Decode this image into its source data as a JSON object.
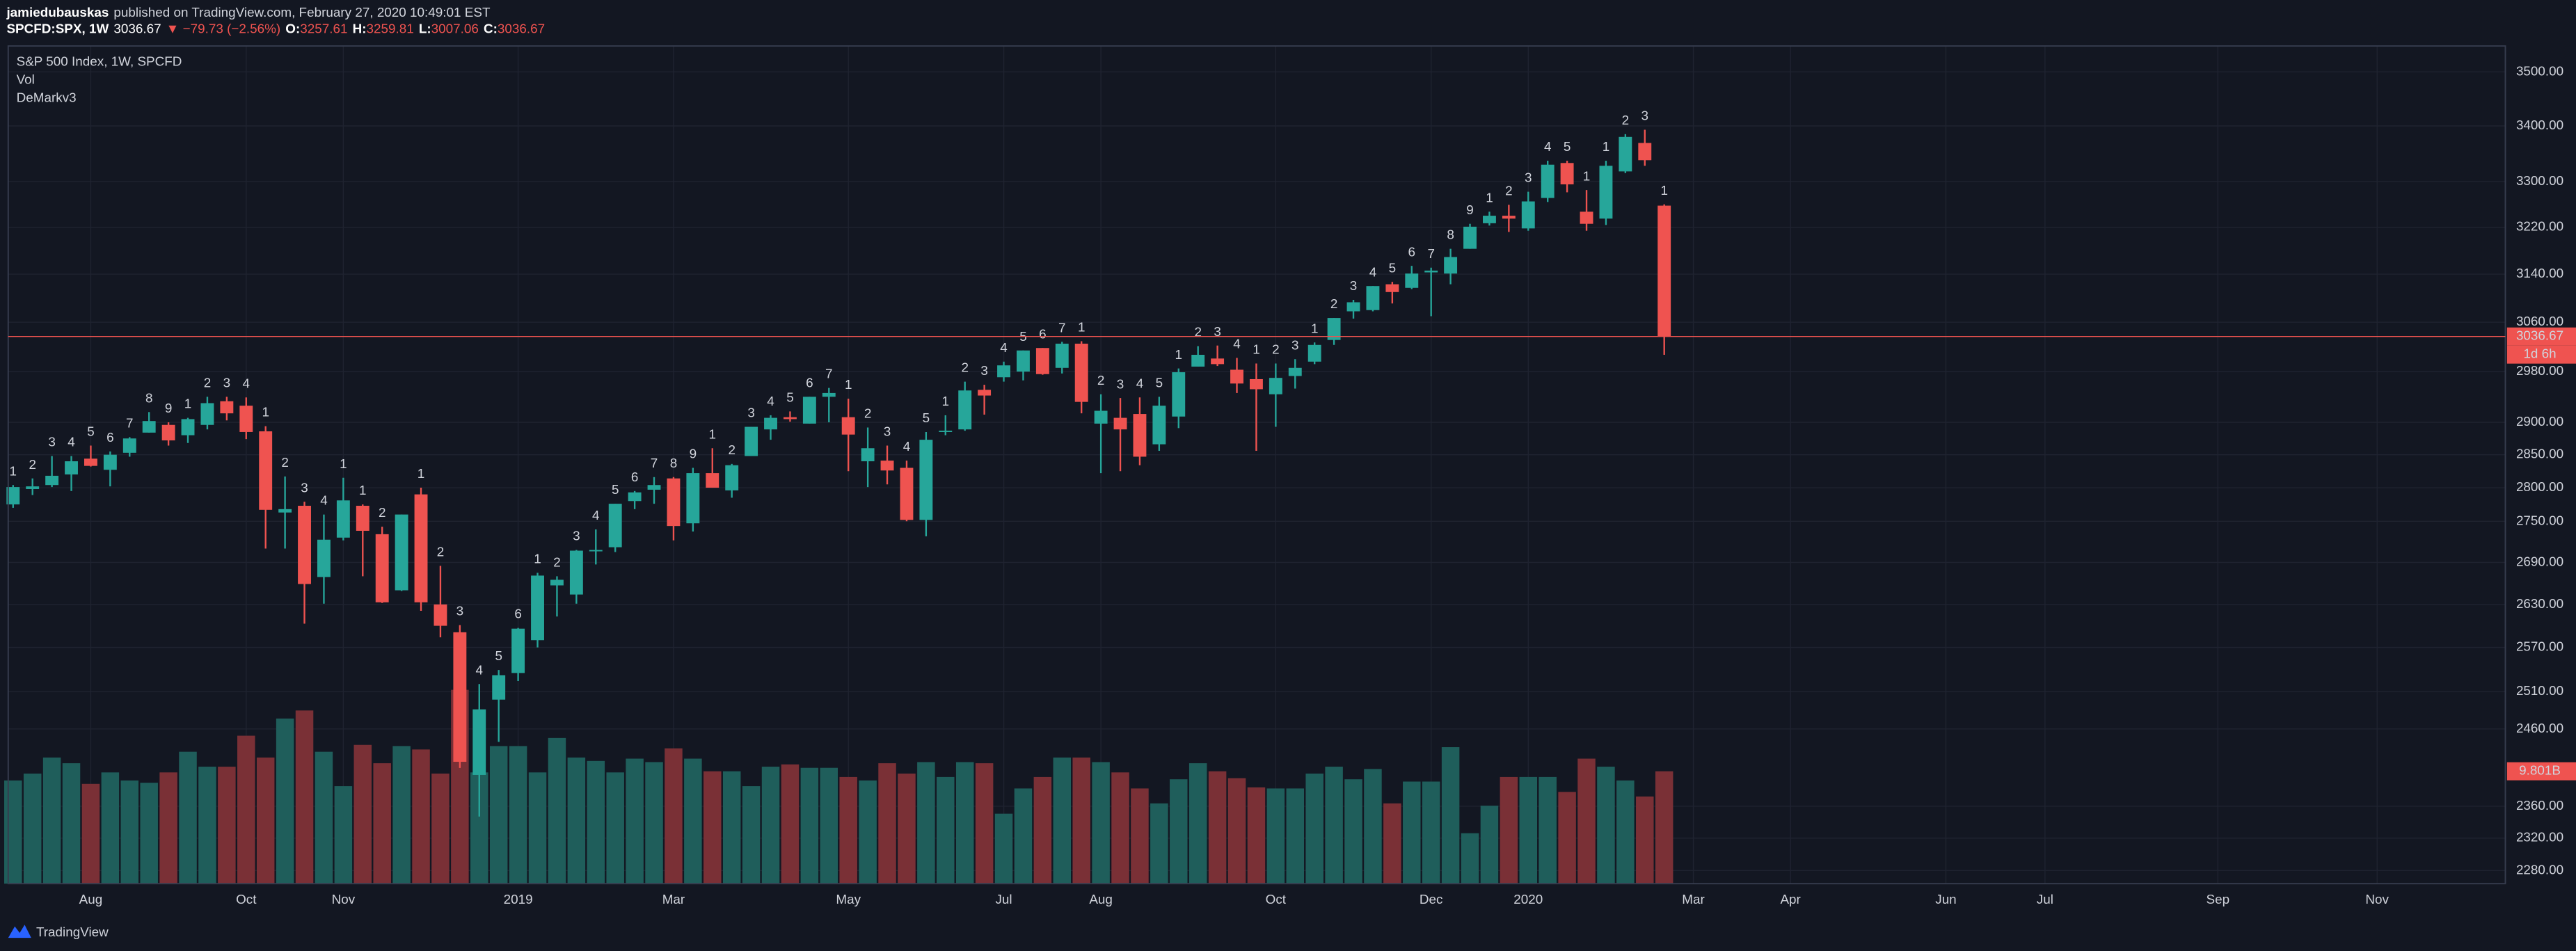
{
  "header": {
    "author": "jamiedubauskas",
    "published": "published on TradingView.com, February 27, 2020 10:49:01 EST",
    "symbol": "SPCFD:SPX, 1W",
    "change": "▼ −79.73 (−2.56%)",
    "open_label": "O:",
    "high_label": "H:",
    "low_label": "L:",
    "close_label": "C:"
  },
  "footer": {
    "brand": "TradingView"
  },
  "chart_data": {
    "type": "candlestick",
    "title": "S&P 500 Index, 1W, SPCFD",
    "indicators": [
      "Vol",
      "DeMarkv3"
    ],
    "open": [
      2775,
      2798,
      2804,
      2820,
      2844,
      2827,
      2853,
      2884,
      2896,
      2880,
      2896,
      2933,
      2926,
      2886,
      2763,
      2773,
      2669,
      2726,
      2773,
      2731,
      2650,
      2790,
      2630,
      2591,
      2400,
      2499,
      2535,
      2580,
      2657,
      2644,
      2706,
      2712,
      2780,
      2797,
      2814,
      2747,
      2822,
      2796,
      2848,
      2889,
      2908,
      2898,
      2940,
      2908,
      2840,
      2841,
      2830,
      2752,
      2885,
      2889,
      2951,
      2971,
      2980,
      3018,
      2986,
      3025,
      2898,
      2907,
      2913,
      2866,
      2909,
      2988,
      3001,
      2983,
      2968,
      2944,
      2973,
      2996,
      3031,
      3078,
      3080,
      3123,
      3117,
      3143,
      3141,
      3183,
      3227,
      3240,
      3218,
      3271,
      3333,
      3247,
      3235,
      3318,
      3369,
      3257.61
    ],
    "high": [
      2804,
      2814,
      2848,
      2848,
      2864,
      2855,
      2877,
      2916,
      2900,
      2907,
      2940,
      2940,
      2939,
      2894,
      2817,
      2779,
      2760,
      2815,
      2775,
      2742,
      2760,
      2800,
      2685,
      2601,
      2520,
      2539,
      2597,
      2675,
      2670,
      2708,
      2738,
      2776,
      2795,
      2816,
      2816,
      2830,
      2860,
      2836,
      2893,
      2911,
      2917,
      2940,
      2954,
      2937,
      2892,
      2864,
      2841,
      2885,
      2911,
      2964,
      2959,
      2996,
      3014,
      3018,
      3028,
      3029,
      2944,
      2938,
      2939,
      2940,
      2985,
      3021,
      3022,
      3002,
      2993,
      2993,
      3000,
      3027,
      3067,
      3097,
      3120,
      3127,
      3154,
      3151,
      3183,
      3226,
      3247,
      3259,
      3282,
      3337,
      3337,
      3285,
      3337,
      3385,
      3393,
      3259.81
    ],
    "low": [
      2770,
      2789,
      2801,
      2795,
      2832,
      2802,
      2847,
      2884,
      2864,
      2868,
      2889,
      2903,
      2874,
      2710,
      2710,
      2603,
      2631,
      2722,
      2670,
      2632,
      2649,
      2621,
      2584,
      2409,
      2347,
      2443,
      2524,
      2570,
      2613,
      2631,
      2687,
      2705,
      2768,
      2776,
      2722,
      2735,
      2800,
      2785,
      2848,
      2873,
      2901,
      2898,
      2900,
      2825,
      2801,
      2805,
      2750,
      2728,
      2880,
      2887,
      2912,
      2964,
      2966,
      2975,
      2977,
      2914,
      2822,
      2825,
      2834,
      2856,
      2891,
      2988,
      2989,
      2946,
      2856,
      2893,
      2953,
      2992,
      3023,
      3066,
      3078,
      3091,
      3115,
      3070,
      3123,
      3183,
      3223,
      3212,
      3214,
      3264,
      3281,
      3214,
      3224,
      3315,
      3328,
      3007.06
    ],
    "close": [
      2801,
      2802,
      2818,
      2840,
      2833,
      2850,
      2875,
      2902,
      2872,
      2905,
      2930,
      2914,
      2885,
      2767,
      2768,
      2659,
      2723,
      2781,
      2736,
      2633,
      2760,
      2633,
      2600,
      2417,
      2486,
      2532,
      2596,
      2671,
      2665,
      2707,
      2708,
      2776,
      2793,
      2804,
      2743,
      2822,
      2800,
      2834,
      2893,
      2907,
      2905,
      2940,
      2946,
      2881,
      2860,
      2826,
      2752,
      2873,
      2887,
      2950,
      2942,
      2990,
      3014,
      2976,
      3025,
      2932,
      2918,
      2889,
      2847,
      2926,
      2979,
      3007,
      2992,
      2961,
      2952,
      2970,
      2986,
      3023,
      3067,
      3093,
      3120,
      3110,
      3141,
      3146,
      3169,
      3221,
      3240,
      3235,
      3265,
      3330,
      3295,
      3226,
      3328,
      3380,
      3338,
      3036.67
    ],
    "volume": [
      9.0,
      9.6,
      11.0,
      10.5,
      8.7,
      9.7,
      9.0,
      8.8,
      9.7,
      11.5,
      10.2,
      10.2,
      12.9,
      11.0,
      14.4,
      15.1,
      11.5,
      8.5,
      12.1,
      10.5,
      12.0,
      11.7,
      9.6,
      16.9,
      9.7,
      12.0,
      12.0,
      9.7,
      12.7,
      11.0,
      10.7,
      9.7,
      10.9,
      10.6,
      11.8,
      10.9,
      9.8,
      9.8,
      8.5,
      10.2,
      10.4,
      10.1,
      10.1,
      9.3,
      9.0,
      10.5,
      9.6,
      10.6,
      9.3,
      10.6,
      10.5,
      6.1,
      8.3,
      9.3,
      11.0,
      11.0,
      10.6,
      9.7,
      8.3,
      7.0,
      9.1,
      10.5,
      9.8,
      9.2,
      8.4,
      8.3,
      8.3,
      9.6,
      10.2,
      9.1,
      10.0,
      7.0,
      8.9,
      8.9,
      11.9,
      4.4,
      6.8,
      9.3,
      9.3,
      9.3,
      8.0,
      10.9,
      10.2,
      9.0,
      7.6,
      9.801
    ],
    "last_volume_label": "9.801B",
    "countdown": "1d 6h",
    "sell_setup": [
      1,
      2,
      3,
      4,
      5,
      6,
      7,
      8,
      9,
      1,
      2,
      3,
      4,
      null,
      null,
      null,
      null,
      1,
      null,
      null,
      null,
      null,
      null,
      null,
      null,
      null,
      null,
      1,
      2,
      3,
      4,
      5,
      6,
      7,
      8,
      9,
      1,
      2,
      3,
      4,
      5,
      6,
      7,
      null,
      null,
      null,
      null,
      null,
      1,
      2,
      3,
      4,
      5,
      6,
      7,
      null,
      null,
      null,
      null,
      null,
      1,
      2,
      3,
      4,
      null,
      null,
      null,
      1,
      2,
      3,
      4,
      5,
      6,
      7,
      8,
      9,
      1,
      2,
      3,
      4,
      5,
      null,
      1,
      2,
      3,
      null
    ],
    "buy_setup": [
      null,
      null,
      null,
      null,
      null,
      null,
      null,
      null,
      null,
      null,
      null,
      null,
      null,
      1,
      2,
      3,
      4,
      null,
      1,
      2,
      null,
      1,
      2,
      3,
      4,
      5,
      6,
      null,
      null,
      null,
      null,
      null,
      null,
      null,
      null,
      null,
      null,
      null,
      null,
      null,
      null,
      null,
      null,
      1,
      2,
      3,
      4,
      5,
      null,
      null,
      null,
      null,
      null,
      null,
      null,
      1,
      2,
      3,
      4,
      5,
      null,
      null,
      null,
      null,
      1,
      2,
      3,
      null,
      null,
      null,
      null,
      null,
      null,
      null,
      null,
      null,
      null,
      null,
      null,
      null,
      null,
      1,
      null,
      null,
      null,
      1
    ],
    "up_color": "#26a69a",
    "down_color": "#ef5350",
    "volume_up_color": "#1f5e5b",
    "volume_down_color": "#7a3036",
    "sell_setup_color": "#2e9b45",
    "buy_setup_color": "#c62b35",
    "log_scale": true,
    "grid": true,
    "xlim": [
      -0.25,
      128.3
    ],
    "xticks": [
      {
        "value": 4,
        "label": "Aug"
      },
      {
        "value": 12,
        "label": "Oct"
      },
      {
        "value": 17,
        "label": "Nov"
      },
      {
        "value": 26,
        "label": "2019"
      },
      {
        "value": 34,
        "label": "Mar"
      },
      {
        "value": 43,
        "label": "May"
      },
      {
        "value": 51,
        "label": "Jul"
      },
      {
        "value": 56,
        "label": "Aug"
      },
      {
        "value": 65,
        "label": "Oct"
      },
      {
        "value": 73,
        "label": "Dec"
      },
      {
        "value": 78,
        "label": "2020"
      },
      {
        "value": 86.5,
        "label": "Mar"
      },
      {
        "value": 91.5,
        "label": "Apr"
      },
      {
        "value": 99.5,
        "label": "Jun"
      },
      {
        "value": 104.6,
        "label": "Jul"
      },
      {
        "value": 113.5,
        "label": "Sep"
      },
      {
        "value": 121.7,
        "label": "Nov"
      }
    ],
    "ylim": [
      2264,
      3549
    ],
    "yticks": [
      {
        "value": 2280,
        "label": "2280.00"
      },
      {
        "value": 2320,
        "label": "2320.00"
      },
      {
        "value": 2360,
        "label": "2360.00"
      },
      {
        "value": 2460,
        "label": "2460.00"
      },
      {
        "value": 2510,
        "label": "2510.00"
      },
      {
        "value": 2570,
        "label": "2570.00"
      },
      {
        "value": 2630,
        "label": "2630.00"
      },
      {
        "value": 2690,
        "label": "2690.00"
      },
      {
        "value": 2750,
        "label": "2750.00"
      },
      {
        "value": 2800,
        "label": "2800.00"
      },
      {
        "value": 2850,
        "label": "2850.00"
      },
      {
        "value": 2900,
        "label": "2900.00"
      },
      {
        "value": 2980,
        "label": "2980.00"
      },
      {
        "value": 3060,
        "label": "3060.00"
      },
      {
        "value": 3140,
        "label": "3140.00"
      },
      {
        "value": 3220,
        "label": "3220.00"
      },
      {
        "value": 3300,
        "label": "3300.00"
      },
      {
        "value": 3400,
        "label": "3400.00"
      },
      {
        "value": 3500,
        "label": "3500.00"
      }
    ]
  }
}
